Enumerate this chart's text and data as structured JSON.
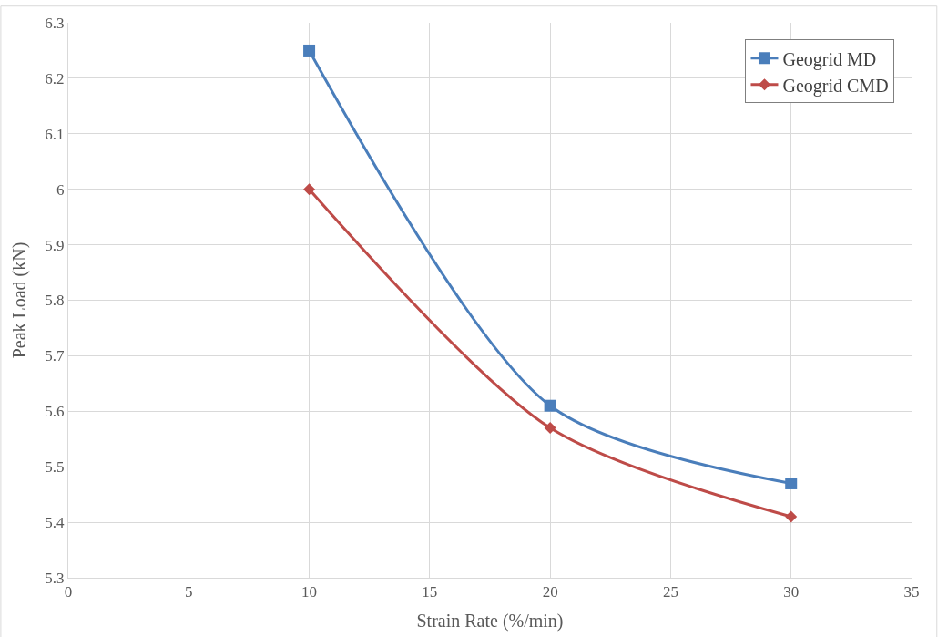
{
  "chart_data": {
    "type": "line",
    "xlabel": "Strain Rate (%/min)",
    "ylabel": "Peak Load (kN)",
    "x": [
      10,
      20,
      30
    ],
    "series": [
      {
        "name": "Geogrid MD",
        "color": "#4a7ebb",
        "values": [
          6.25,
          5.61,
          5.47
        ],
        "marker": "square"
      },
      {
        "name": "Geogrid CMD",
        "color": "#be4b48",
        "values": [
          6.0,
          5.57,
          5.41
        ],
        "marker": "diamond"
      }
    ],
    "xlim": [
      0,
      35
    ],
    "xticks": [
      0,
      5,
      10,
      15,
      20,
      25,
      30,
      35
    ],
    "ylim": [
      5.3,
      6.3
    ],
    "yticks": [
      5.3,
      5.4,
      5.5,
      5.6,
      5.7,
      5.8,
      5.9,
      6,
      6.1,
      6.2,
      6.3
    ],
    "grid": true,
    "legend": "top right"
  }
}
